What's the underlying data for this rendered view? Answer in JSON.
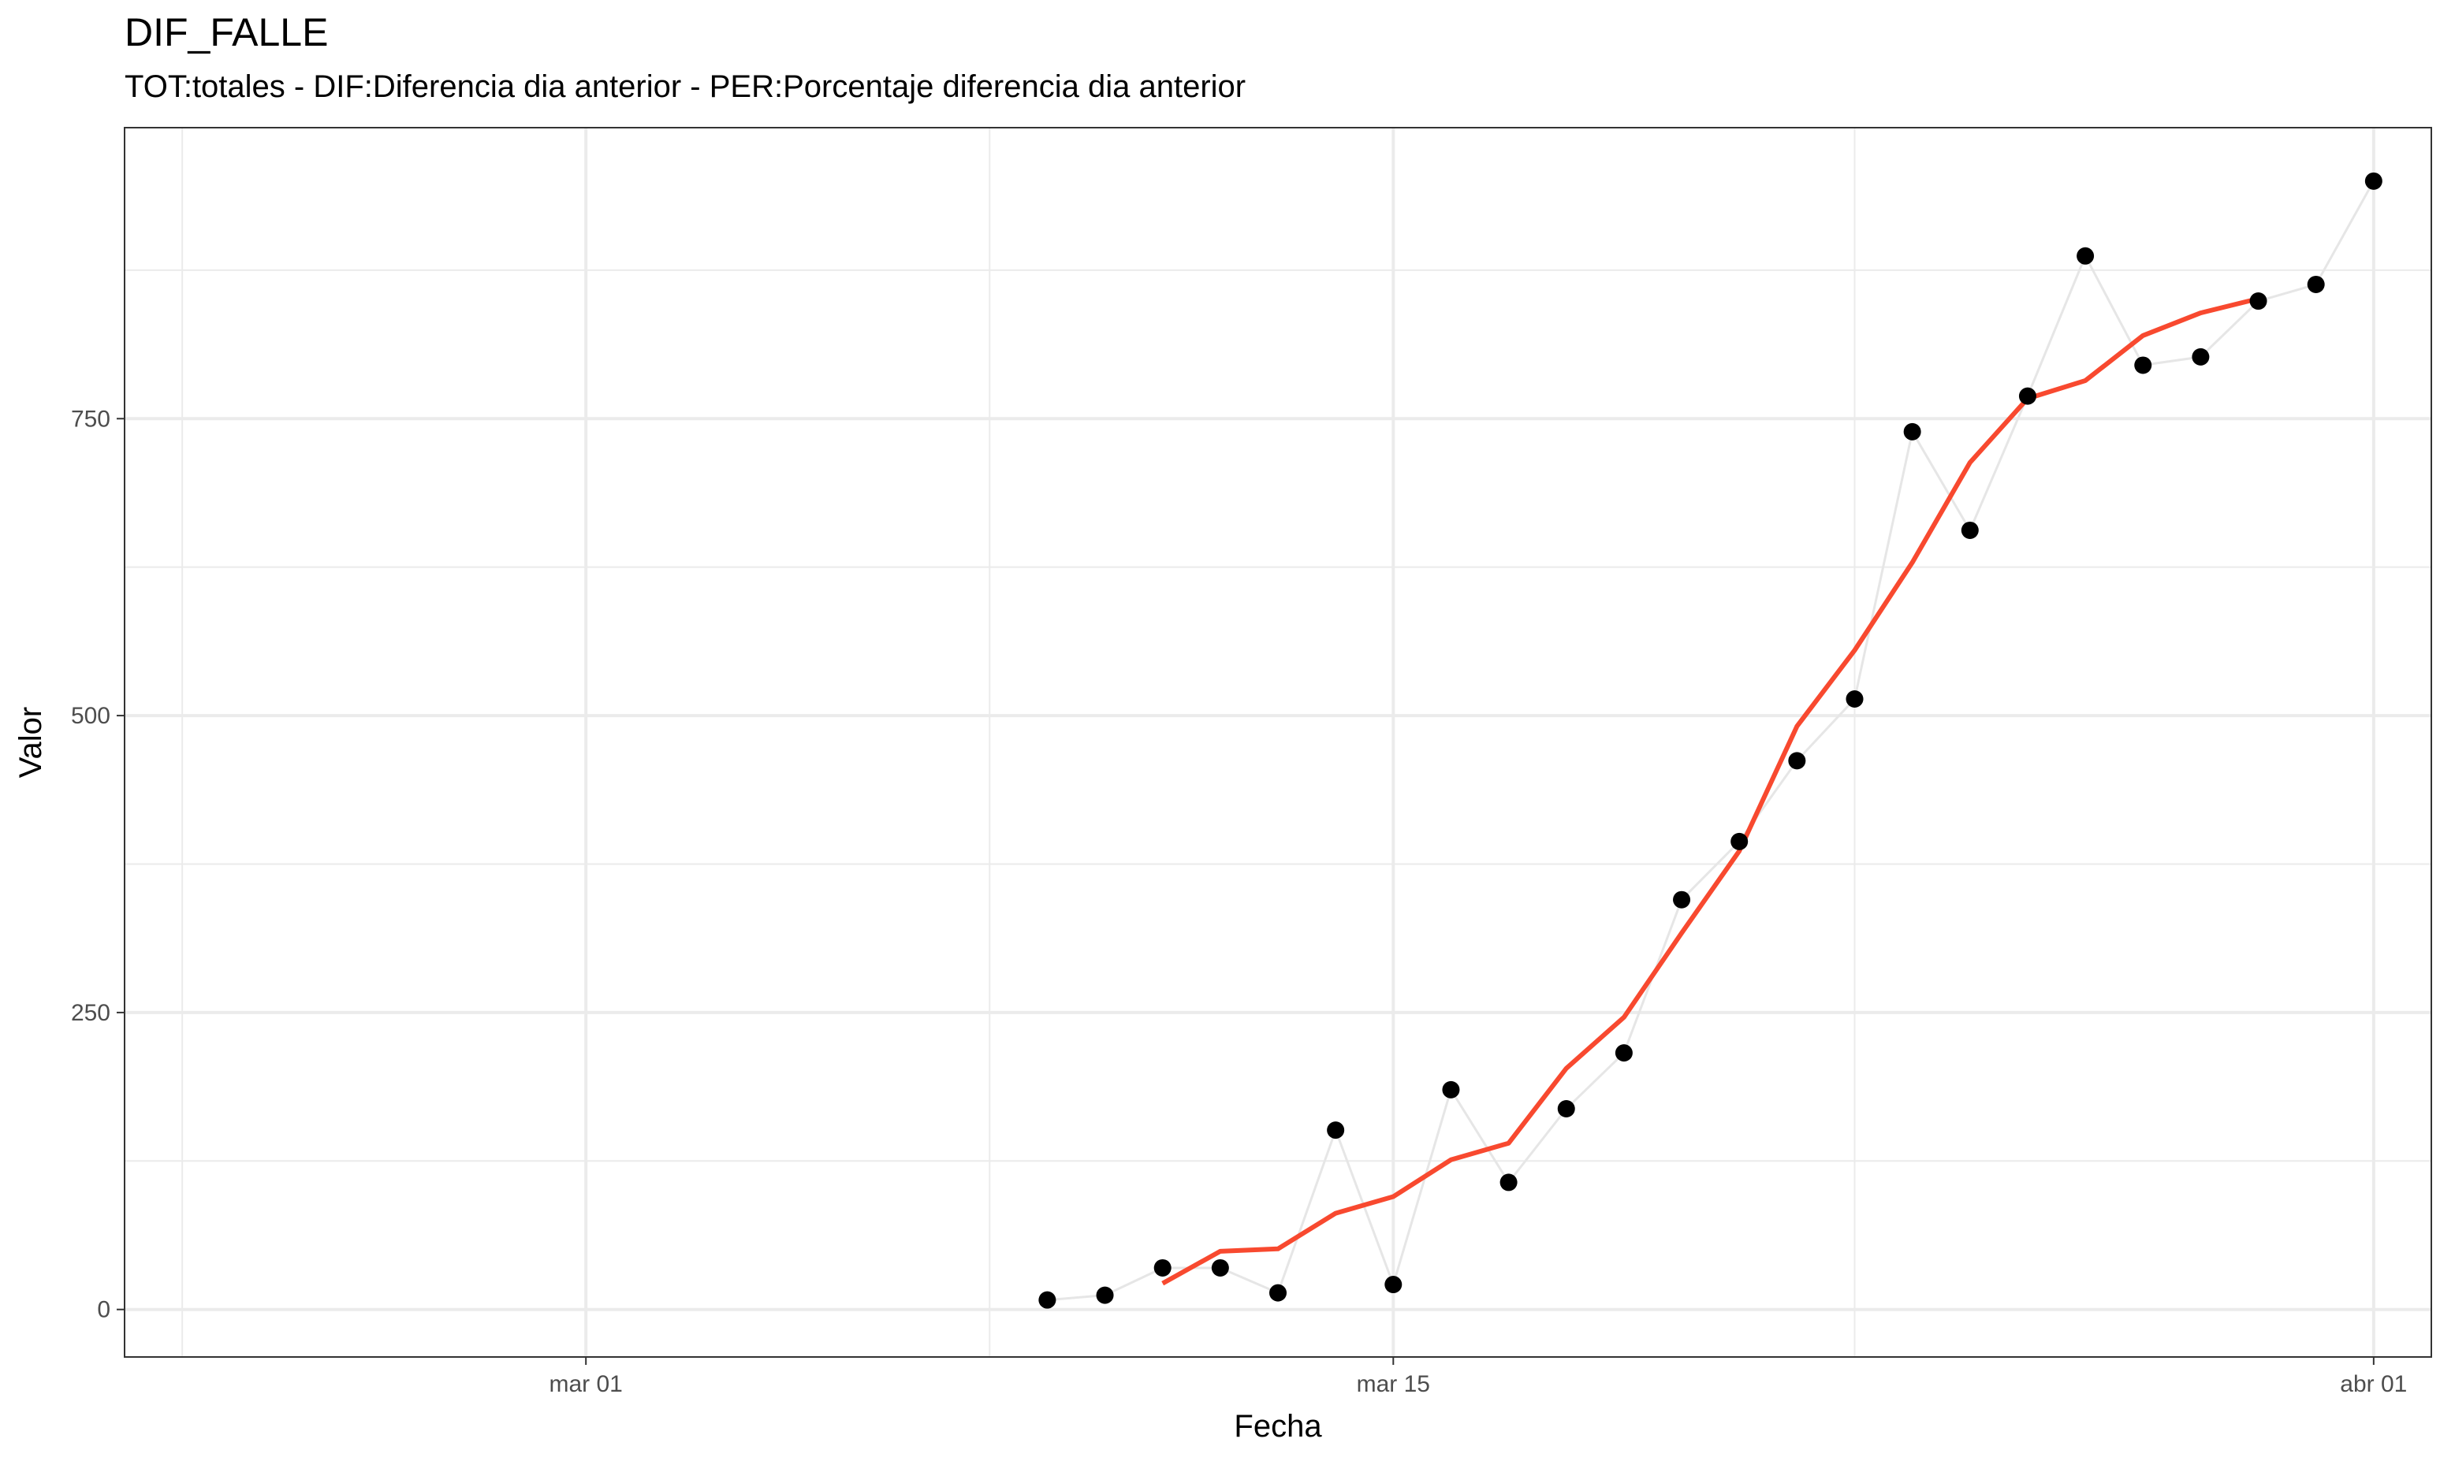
{
  "chart_data": {
    "type": "line",
    "title": "DIF_FALLE",
    "subtitle": "TOT:totales - DIF:Diferencia dia anterior - PER:Porcentaje diferencia dia anterior",
    "xlabel": "Fecha",
    "ylabel": "Valor",
    "x_type": "date",
    "xlim": [
      "2020-02-22",
      "2020-04-02"
    ],
    "ylim": [
      -40,
      995
    ],
    "x_ticks": [
      {
        "date": "2020-03-01",
        "label": "mar 01"
      },
      {
        "date": "2020-03-15",
        "label": "mar 15"
      },
      {
        "date": "2020-04-01",
        "label": "abr 01"
      }
    ],
    "x_minor_ticks": [
      "2020-02-23",
      "2020-03-08",
      "2020-03-23"
    ],
    "y_ticks": [
      0,
      250,
      500,
      750
    ],
    "y_minor_ticks": [
      125,
      375,
      625,
      875
    ],
    "grid": true,
    "series": [
      {
        "style": "points",
        "color": "#000000",
        "connector_color": "#e6e6e6",
        "points": [
          {
            "x": "2020-03-09",
            "y": 8
          },
          {
            "x": "2020-03-10",
            "y": 12
          },
          {
            "x": "2020-03-11",
            "y": 35
          },
          {
            "x": "2020-03-12",
            "y": 35
          },
          {
            "x": "2020-03-13",
            "y": 14
          },
          {
            "x": "2020-03-14",
            "y": 151
          },
          {
            "x": "2020-03-15",
            "y": 21
          },
          {
            "x": "2020-03-16",
            "y": 185
          },
          {
            "x": "2020-03-17",
            "y": 107
          },
          {
            "x": "2020-03-18",
            "y": 169
          },
          {
            "x": "2020-03-19",
            "y": 216
          },
          {
            "x": "2020-03-20",
            "y": 345
          },
          {
            "x": "2020-03-21",
            "y": 394
          },
          {
            "x": "2020-03-22",
            "y": 462
          },
          {
            "x": "2020-03-23",
            "y": 514
          },
          {
            "x": "2020-03-24",
            "y": 739
          },
          {
            "x": "2020-03-25",
            "y": 656
          },
          {
            "x": "2020-03-26",
            "y": 769
          },
          {
            "x": "2020-03-27",
            "y": 887
          },
          {
            "x": "2020-03-28",
            "y": 795
          },
          {
            "x": "2020-03-29",
            "y": 802
          },
          {
            "x": "2020-03-30",
            "y": 849
          },
          {
            "x": "2020-03-31",
            "y": 863
          },
          {
            "x": "2020-04-01",
            "y": 950
          }
        ]
      },
      {
        "style": "line",
        "color": "#f8492f",
        "points": [
          {
            "x": "2020-03-11",
            "y": 22
          },
          {
            "x": "2020-03-12",
            "y": 49
          },
          {
            "x": "2020-03-13",
            "y": 51
          },
          {
            "x": "2020-03-14",
            "y": 81
          },
          {
            "x": "2020-03-15",
            "y": 95
          },
          {
            "x": "2020-03-16",
            "y": 126
          },
          {
            "x": "2020-03-17",
            "y": 140
          },
          {
            "x": "2020-03-18",
            "y": 203
          },
          {
            "x": "2020-03-19",
            "y": 246
          },
          {
            "x": "2020-03-20",
            "y": 317
          },
          {
            "x": "2020-03-21",
            "y": 386
          },
          {
            "x": "2020-03-22",
            "y": 491
          },
          {
            "x": "2020-03-23",
            "y": 555
          },
          {
            "x": "2020-03-24",
            "y": 629
          },
          {
            "x": "2020-03-25",
            "y": 713
          },
          {
            "x": "2020-03-26",
            "y": 767
          },
          {
            "x": "2020-03-27",
            "y": 782
          },
          {
            "x": "2020-03-28",
            "y": 820
          },
          {
            "x": "2020-03-29",
            "y": 839
          },
          {
            "x": "2020-03-30",
            "y": 851
          }
        ]
      }
    ]
  }
}
